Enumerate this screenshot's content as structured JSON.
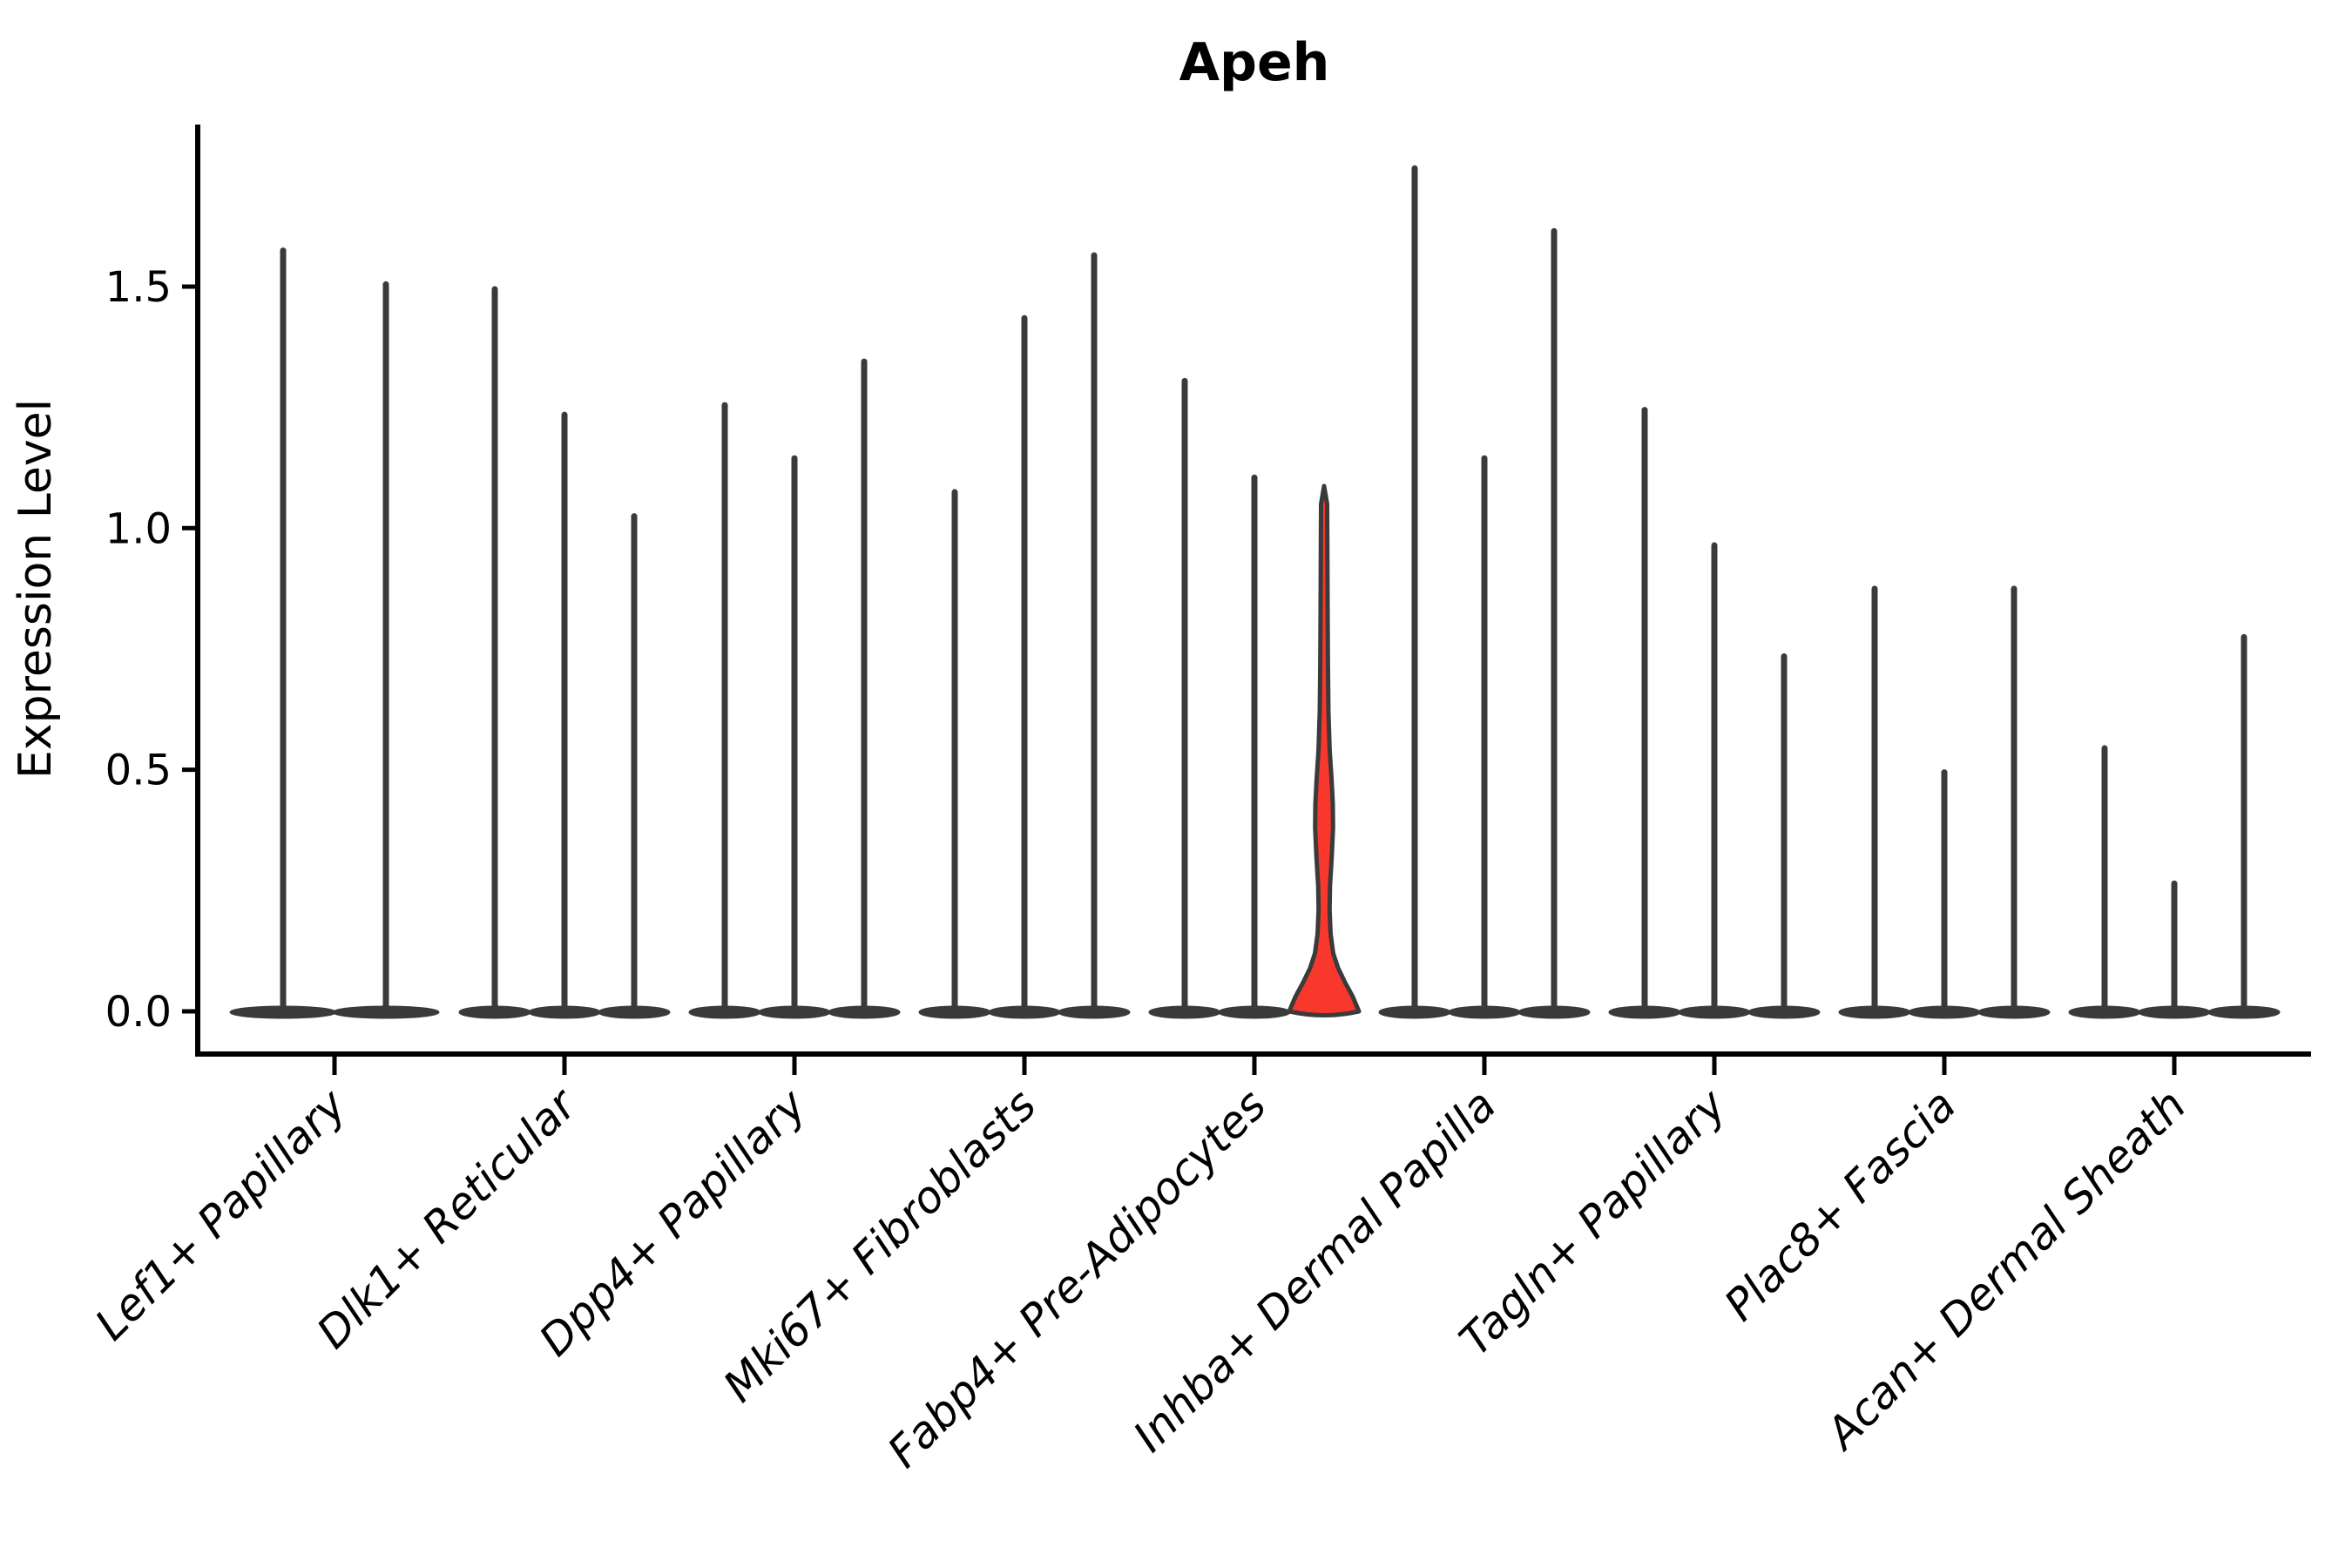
{
  "chart_data": {
    "type": "violin",
    "title": "Apeh",
    "ylabel": "Expression Level",
    "xlabel": "",
    "ytick_labels": [
      "0.0",
      "0.5",
      "1.0",
      "1.5"
    ],
    "ytick_values": [
      0.0,
      0.5,
      1.0,
      1.5
    ],
    "ylim": [
      -0.09,
      1.84
    ],
    "grid": "off",
    "legend": "none",
    "categories": [
      "Lef1+ Papillary",
      "Dlk1+ Reticular",
      "Dpp4+ Papillary",
      "Mki67+ Fibroblasts",
      "Fabp4+ Pre-Adipocytes",
      "Inhba+ Dermal Papilla",
      "Tagln+ Papillary",
      "Plac8+ Fascia",
      "Acan+ Dermal Sheath"
    ],
    "groups": [
      {
        "category": "Lef1+ Papillary",
        "violins": [
          {
            "max": 1.58
          },
          {
            "max": 1.51
          }
        ]
      },
      {
        "category": "Dlk1+ Reticular",
        "violins": [
          {
            "max": 1.5
          },
          {
            "max": 1.24
          },
          {
            "max": 1.03
          }
        ]
      },
      {
        "category": "Dpp4+ Papillary",
        "violins": [
          {
            "max": 1.26
          },
          {
            "max": 1.15
          },
          {
            "max": 1.35
          }
        ]
      },
      {
        "category": "Mki67+ Fibroblasts",
        "violins": [
          {
            "max": 1.08
          },
          {
            "max": 1.44
          },
          {
            "max": 1.57
          }
        ]
      },
      {
        "category": "Fabp4+ Pre-Adipocytes",
        "violins": [
          {
            "max": 1.31
          },
          {
            "max": 1.11
          },
          {
            "max": 1.08,
            "highlighted": true,
            "profile_value_halfwidth": [
              [
                0.0,
                40.0
              ],
              [
                0.03,
                33.0
              ],
              [
                0.06,
                24.0
              ],
              [
                0.09,
                16.0
              ],
              [
                0.12,
                10.5
              ],
              [
                0.16,
                7.5
              ],
              [
                0.21,
                6.3
              ],
              [
                0.26,
                6.8
              ],
              [
                0.32,
                8.8
              ],
              [
                0.38,
                10.3
              ],
              [
                0.43,
                10.0
              ],
              [
                0.48,
                8.6
              ],
              [
                0.54,
                6.4
              ],
              [
                0.62,
                5.0
              ],
              [
                0.72,
                4.4
              ],
              [
                0.85,
                4.0
              ],
              [
                0.98,
                3.7
              ],
              [
                1.05,
                3.5
              ]
            ]
          }
        ]
      },
      {
        "category": "Inhba+ Dermal Papilla",
        "violins": [
          {
            "max": 1.75
          },
          {
            "max": 1.15
          },
          {
            "max": 1.62
          }
        ]
      },
      {
        "category": "Tagln+ Papillary",
        "violins": [
          {
            "max": 1.25
          },
          {
            "max": 0.97
          },
          {
            "max": 0.74
          }
        ]
      },
      {
        "category": "Plac8+ Fascia",
        "violins": [
          {
            "max": 0.88
          },
          {
            "max": 0.5
          },
          {
            "max": 0.88
          }
        ]
      },
      {
        "category": "Acan+ Dermal Sheath",
        "violins": [
          {
            "max": 0.55
          },
          {
            "max": 0.27
          },
          {
            "max": 0.78
          }
        ]
      }
    ],
    "colors": {
      "violin": "#3a3a3a",
      "highlight_fill": "#f8372d",
      "axis": "#000000",
      "text": "#000000",
      "background": "#ffffff"
    }
  }
}
